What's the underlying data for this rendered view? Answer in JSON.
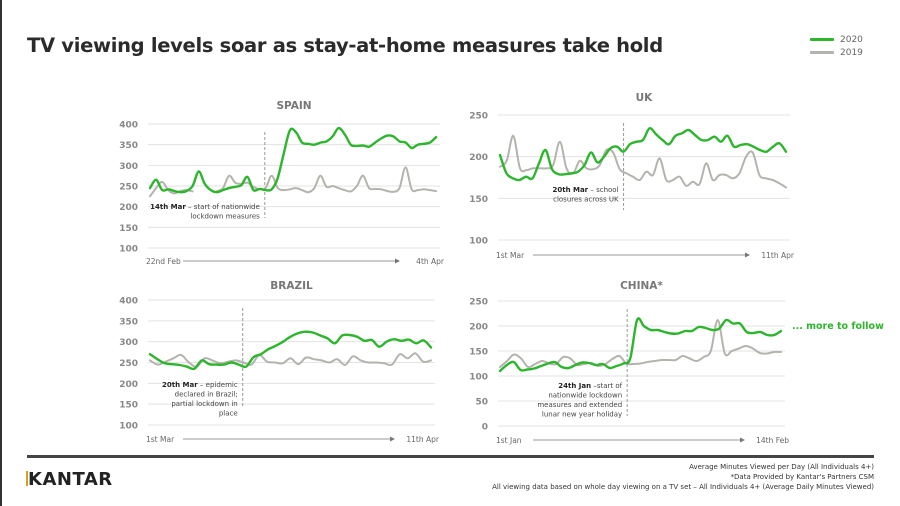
{
  "title": "TV viewing levels soar as stay-at-home measures take hold",
  "legend": [
    {
      "label": "2020",
      "color": "#2db52d"
    },
    {
      "label": "2019",
      "color": "#b5b3ad"
    }
  ],
  "more_to_follow": "... more to follow",
  "footer": {
    "logo": "KANTAR",
    "notes": [
      "Average Minutes Viewed per Day (All Individuals 4+)",
      "*Data Provided by Kantar's Partners CSM",
      "All viewing data based on whole day viewing on a TV set – All Individuals 4+ (Average Daily Minutes Viewed)"
    ]
  },
  "chart_data": [
    {
      "id": "spain",
      "type": "line",
      "title": "SPAIN",
      "ylim": [
        100,
        400
      ],
      "yticks": [
        100,
        150,
        200,
        250,
        300,
        350,
        400
      ],
      "grid": true,
      "x_start_label": "22nd Feb",
      "x_end_label": "4th Apr",
      "event_position": 0.4,
      "annotation": {
        "bold": "14th Mar",
        "lines": [
          "14th Mar – start of nationwide",
          "lockdown measures"
        ]
      },
      "series": [
        {
          "name": "2020",
          "color": "#2db52d",
          "values": [
            245,
            265,
            240,
            242,
            238,
            235,
            238,
            250,
            285,
            255,
            240,
            235,
            240,
            245,
            248,
            252,
            272,
            240,
            243,
            240,
            242,
            270,
            330,
            385,
            380,
            355,
            352,
            350,
            355,
            358,
            370,
            390,
            375,
            350,
            347,
            348,
            345,
            355,
            365,
            372,
            370,
            358,
            355,
            342,
            350,
            352,
            355,
            368
          ]
        },
        {
          "name": "2019",
          "color": "#b5b3ad",
          "values": [
            225,
            245,
            260,
            240,
            232,
            238,
            240,
            237,
            null,
            null,
            null,
            238,
            245,
            275,
            258,
            255,
            258,
            248,
            242,
            245,
            275,
            245,
            240,
            242,
            245,
            240,
            235,
            245,
            275,
            248,
            250,
            245,
            240,
            237,
            250,
            275,
            245,
            243,
            242,
            238,
            236,
            245,
            295,
            242,
            240,
            242,
            240,
            238
          ]
        }
      ]
    },
    {
      "id": "uk",
      "type": "line",
      "title": "UK",
      "ylim": [
        100,
        250
      ],
      "yticks": [
        100,
        150,
        200,
        250
      ],
      "grid": true,
      "x_start_label": "1st Mar",
      "x_end_label": "11th Apr",
      "event_position": 0.43,
      "annotation": {
        "bold": "20th Mar",
        "lines": [
          "20th Mar – school",
          "closures across UK"
        ]
      },
      "series": [
        {
          "name": "2020",
          "color": "#2db52d",
          "values": [
            202,
            180,
            174,
            172,
            176,
            174,
            192,
            208,
            185,
            179,
            179,
            180,
            182,
            190,
            205,
            193,
            200,
            210,
            212,
            206,
            215,
            218,
            220,
            234,
            227,
            220,
            215,
            225,
            228,
            232,
            226,
            220,
            220,
            224,
            218,
            225,
            212,
            214,
            215,
            212,
            208,
            206,
            212,
            216,
            206
          ]
        },
        {
          "name": "2019",
          "color": "#b5b3ad",
          "values": [
            188,
            195,
            225,
            186,
            184,
            186,
            186,
            186,
            190,
            218,
            186,
            180,
            195,
            186,
            185,
            190,
            208,
            205,
            185,
            180,
            176,
            172,
            182,
            178,
            198,
            172,
            172,
            176,
            165,
            170,
            167,
            192,
            172,
            178,
            178,
            174,
            180,
            200,
            205,
            178,
            174,
            172,
            168,
            163
          ]
        }
      ]
    },
    {
      "id": "brazil",
      "type": "line",
      "title": "BRAZIL",
      "ylim": [
        100,
        400
      ],
      "yticks": [
        100,
        150,
        200,
        250,
        300,
        350,
        400
      ],
      "grid": true,
      "x_start_label": "1st Mar",
      "x_end_label": "11th Apr",
      "event_position": 0.33,
      "annotation": {
        "bold": "20th Mar",
        "lines": [
          "20th Mar – epidemic",
          "declared in Brazil;",
          "partial lockdown in",
          "place"
        ]
      },
      "series": [
        {
          "name": "2020",
          "color": "#2db52d",
          "values": [
            270,
            258,
            248,
            246,
            244,
            240,
            235,
            255,
            246,
            245,
            245,
            250,
            245,
            240,
            263,
            270,
            282,
            290,
            300,
            312,
            320,
            324,
            322,
            315,
            308,
            296,
            315,
            316,
            312,
            302,
            304,
            288,
            300,
            306,
            302,
            305,
            296,
            303,
            286
          ]
        },
        {
          "name": "2019",
          "color": "#b5b3ad",
          "values": [
            255,
            245,
            252,
            260,
            268,
            250,
            240,
            260,
            255,
            248,
            252,
            255,
            250,
            245,
            268,
            252,
            250,
            248,
            260,
            246,
            262,
            258,
            255,
            250,
            258,
            244,
            265,
            255,
            250,
            250,
            248,
            245,
            270,
            260,
            272,
            252,
            255
          ]
        }
      ]
    },
    {
      "id": "china",
      "type": "line",
      "title": "CHINA*",
      "ylim": [
        0,
        250
      ],
      "yticks": [
        0,
        50,
        100,
        150,
        200,
        250
      ],
      "grid": true,
      "x_start_label": "1st Jan",
      "x_end_label": "14th Feb",
      "event_position": 0.45,
      "annotation": {
        "bold": "24th Jan",
        "lines": [
          "24th Jan –start of",
          "nationwide lockdown",
          "measures and extended",
          "lunar new year holiday"
        ]
      },
      "series": [
        {
          "name": "2020",
          "color": "#2db52d",
          "values": [
            110,
            122,
            128,
            112,
            113,
            115,
            120,
            125,
            128,
            118,
            116,
            122,
            127,
            126,
            122,
            124,
            116,
            120,
            125,
            135,
            212,
            200,
            192,
            192,
            188,
            185,
            185,
            190,
            190,
            198,
            196,
            192,
            195,
            212,
            205,
            205,
            188,
            186,
            188,
            182,
            182,
            190
          ]
        },
        {
          "name": "2019",
          "color": "#b5b3ad",
          "values": [
            118,
            130,
            143,
            135,
            118,
            124,
            130,
            125,
            124,
            138,
            135,
            122,
            124,
            126,
            120,
            124,
            134,
            140,
            125,
            124,
            125,
            128,
            130,
            132,
            132,
            132,
            140,
            135,
            130,
            138,
            150,
            212,
            145,
            150,
            155,
            160,
            155,
            146,
            145,
            148,
            148
          ]
        }
      ]
    }
  ]
}
